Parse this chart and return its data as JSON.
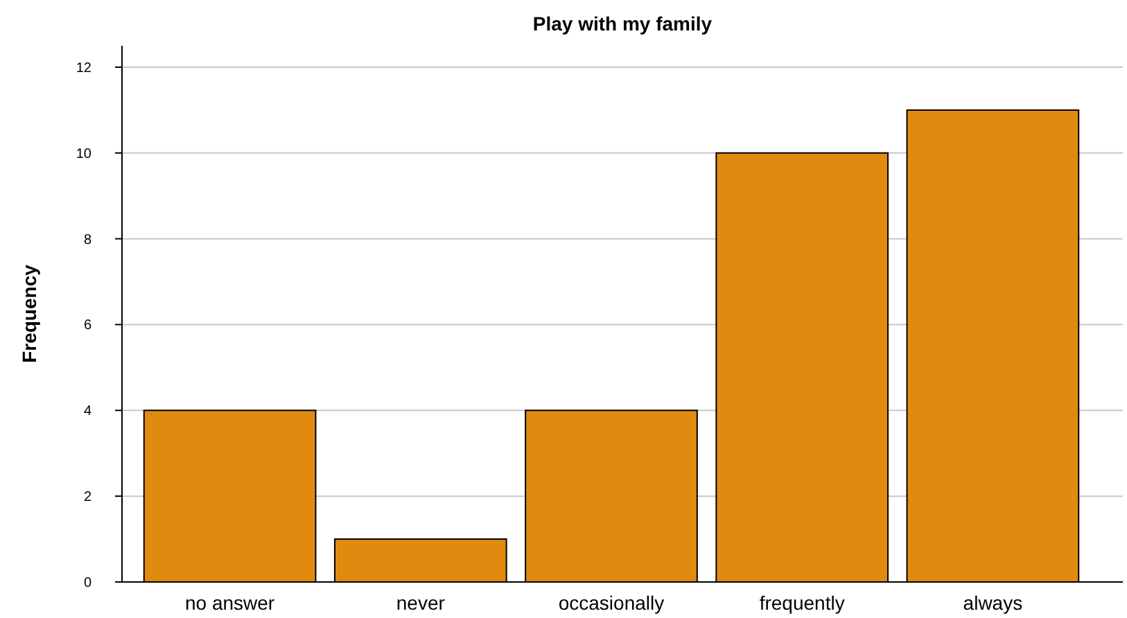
{
  "chart_data": {
    "type": "bar",
    "title": "Play with my family",
    "ylabel": "Frequency",
    "categories": [
      "no answer",
      "never",
      "occasionally",
      "frequently",
      "always"
    ],
    "values": [
      4,
      1,
      4,
      10,
      11
    ],
    "color": "#e08b10",
    "ylim": [
      0,
      12.5
    ],
    "yticks": [
      0,
      2,
      4,
      6,
      8,
      10,
      12
    ],
    "grid": "y"
  }
}
